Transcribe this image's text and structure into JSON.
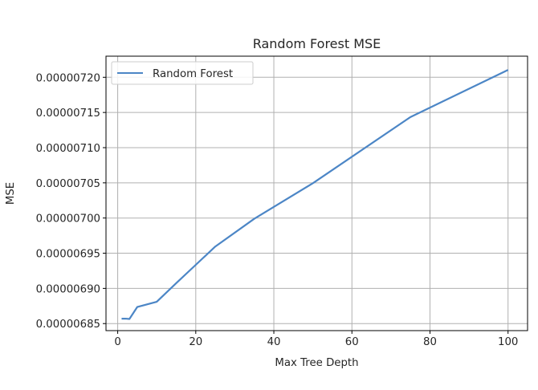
{
  "chart_data": {
    "type": "line",
    "title": "Random Forest MSE",
    "xlabel": "Max Tree Depth",
    "ylabel": "MSE",
    "xlim": [
      -3,
      105
    ],
    "ylim": [
      6.84e-06,
      7.23e-06
    ],
    "xticks": [
      0,
      20,
      40,
      60,
      80,
      100
    ],
    "xtick_labels": [
      "0",
      "20",
      "40",
      "60",
      "80",
      "100"
    ],
    "yticks": [
      6.85e-06,
      6.9e-06,
      6.95e-06,
      7e-06,
      7.05e-06,
      7.1e-06,
      7.15e-06,
      7.2e-06
    ],
    "ytick_labels": [
      "0.00000685",
      "0.00000690",
      "0.00000695",
      "0.00000700",
      "0.00000705",
      "0.00000710",
      "0.00000715",
      "0.00000720"
    ],
    "grid": true,
    "legend": "top-left",
    "series": [
      {
        "name": "Random Forest",
        "color": "#4c86c6",
        "x": [
          1,
          2,
          3,
          5,
          10,
          15,
          20,
          25,
          35,
          50,
          75,
          100
        ],
        "y": [
          6.857e-06,
          6.857e-06,
          6.8565e-06,
          6.8735e-06,
          6.881e-06,
          6.9075e-06,
          6.9335e-06,
          6.9595e-06,
          6.999e-06,
          7.0495e-06,
          7.1435e-06,
          7.2105e-06
        ]
      }
    ]
  }
}
